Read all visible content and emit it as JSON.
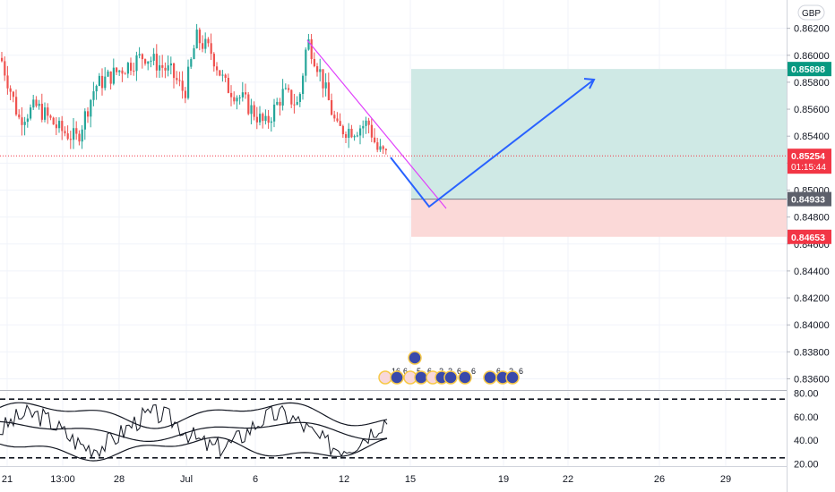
{
  "currency_button": "GBP",
  "colors": {
    "up": "#26a69a",
    "down": "#ef5350",
    "trendline": "#e040fb",
    "projection": "#2962ff",
    "profit_zone": "#cfe9e5",
    "loss_zone": "#fbd9d8",
    "target_tag": "#089981",
    "last_price_tag": "#f23645",
    "entry_tag": "#5d606b",
    "stop_tag": "#f23645"
  },
  "chart_data": {
    "type": "candlestick",
    "y_axis": {
      "range": [
        0.8353,
        0.8641
      ],
      "ticks": [
        "0.86200",
        "0.86000",
        "0.85800",
        "0.85600",
        "0.85400",
        "0.85200",
        "0.85000",
        "0.84800",
        "0.84600",
        "0.84400",
        "0.84200",
        "0.84000",
        "0.83800",
        "0.83600"
      ]
    },
    "x_axis": {
      "ticks": [
        "21",
        "13:00",
        "28",
        "Jul",
        "6",
        "12",
        "15",
        "19",
        "22",
        "26",
        "29"
      ]
    },
    "price_tags": {
      "target": "0.85898",
      "last_price": "0.85254",
      "countdown": "01:15:44",
      "entry": "0.84933",
      "stop": "0.84653"
    },
    "position_tool": {
      "entry": 0.84933,
      "target": 0.85898,
      "stop": 0.84653
    },
    "event_markers": [
      "16",
      "6",
      "5",
      "6",
      "2",
      "2",
      "6",
      "6",
      "6",
      "2",
      "6"
    ],
    "oscillator": {
      "y_range": [
        18,
        82
      ],
      "ticks": [
        "80.00",
        "60.00",
        "40.00",
        "20.00"
      ],
      "levels": [
        75,
        25
      ]
    }
  }
}
